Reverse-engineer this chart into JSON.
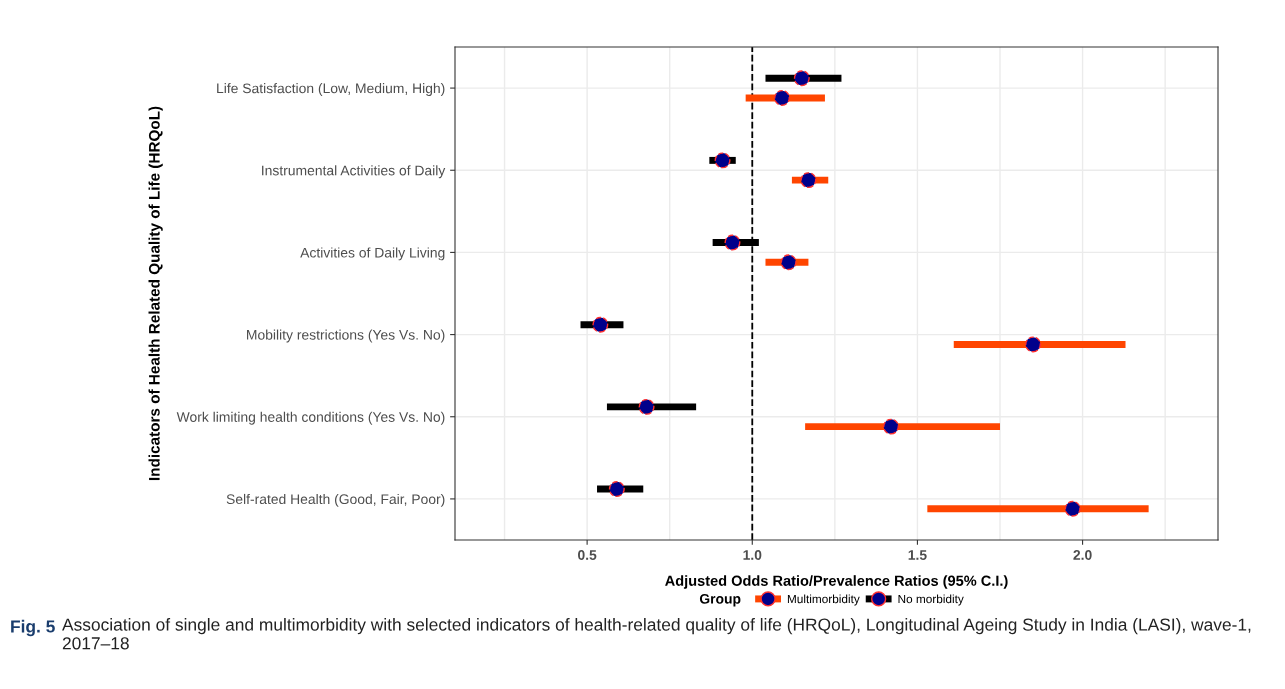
{
  "chart_data": {
    "type": "scatter",
    "orientation": "horizontal",
    "categories": [
      "Life Satisfaction (Low, Medium, High)",
      "Instrumental Activities of Daily",
      "Activities of Daily Living",
      "Mobility restrictions (Yes Vs. No)",
      "Work limiting health conditions (Yes Vs. No)",
      "Self-rated Health (Good, Fair, Poor)"
    ],
    "series": [
      {
        "name": "Multimorbidity",
        "color": "#ff4500",
        "colors": [
          "#00008b",
          "#00008b",
          "#00008b",
          "#00008b",
          "#00008b",
          "#00008b"
        ],
        "values": [
          1.09,
          1.17,
          1.11,
          1.85,
          1.42,
          1.97
        ],
        "errors": [
          [
            0.98,
            1.22
          ],
          [
            1.12,
            1.23
          ],
          [
            1.04,
            1.17
          ],
          [
            1.61,
            2.13
          ],
          [
            1.16,
            1.75
          ],
          [
            1.53,
            2.2
          ]
        ]
      },
      {
        "name": "No morbidity",
        "color": "#000000",
        "colors": [
          "#00008b",
          "#00008b",
          "#00008b",
          "#00008b",
          "#00008b",
          "#00008b"
        ],
        "values": [
          1.15,
          0.91,
          0.94,
          0.54,
          0.68,
          0.59
        ],
        "errors": [
          [
            1.04,
            1.27
          ],
          [
            0.87,
            0.95
          ],
          [
            0.88,
            1.02
          ],
          [
            0.48,
            0.61
          ],
          [
            0.56,
            0.83
          ],
          [
            0.53,
            0.67
          ]
        ]
      }
    ],
    "xlim": [
      0.1,
      2.41
    ],
    "xticks": [
      {
        "value": 0.25,
        "label": null
      },
      0.5,
      {
        "value": 0.75,
        "label": null
      },
      {
        "value": 1.0,
        "label": "1.0"
      },
      {
        "value": 1.25,
        "label": null
      },
      1.5,
      {
        "value": 1.75,
        "label": null
      },
      {
        "value": 2.0,
        "label": "2.0"
      },
      {
        "value": 2.25,
        "label": null
      }
    ],
    "xlabel": "Adjusted Odds Ratio/Prevalence Ratios (95% C.I.)",
    "ylabel": "Indicators of Health Related Quality of Life (HRQoL)",
    "legend_title": "Group",
    "legend": "bottom",
    "marker": "circle",
    "grid": true,
    "ref_lines": [
      {
        "axis": "x",
        "value": 1.0,
        "color": "#000000",
        "line_style": "dashed"
      }
    ],
    "annotations": [
      "Fig. 5",
      "Association of single and multimorbidity with selected indicators of health-related quality of life (HRQoL), Longitudinal Ageing Study in India (LASI), wave-1, 2017–18"
    ]
  }
}
